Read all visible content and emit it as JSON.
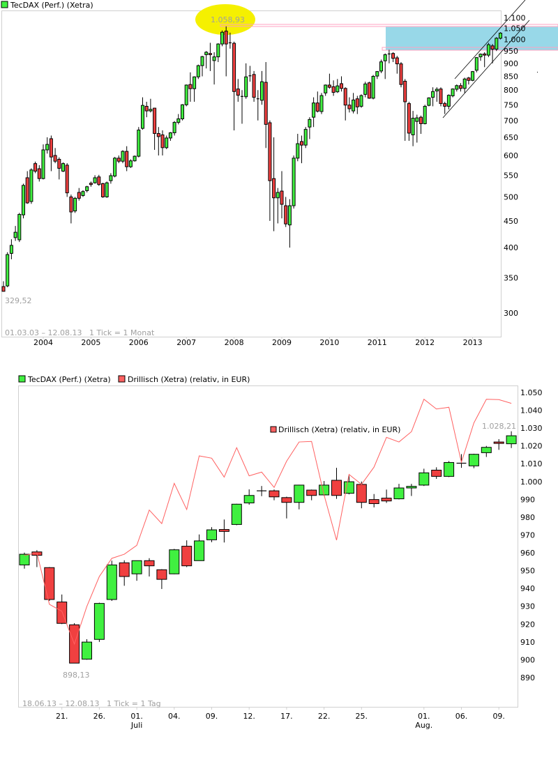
{
  "chart_data": [
    {
      "type": "candlestick",
      "legend": [
        {
          "name": "TecDAX (Perf.) (Xetra)",
          "color": "#40f040"
        }
      ],
      "scale": "log",
      "ylim": [
        280,
        1150
      ],
      "y_ticks": [
        "1.100",
        "1.050",
        "1.000",
        "950",
        "900",
        "850",
        "800",
        "750",
        "700",
        "650",
        "600",
        "550",
        "500",
        "450",
        "400",
        "350",
        "300"
      ],
      "y_tick_values": [
        1100,
        1050,
        1000,
        950,
        900,
        850,
        800,
        750,
        700,
        650,
        600,
        550,
        500,
        450,
        400,
        350,
        300
      ],
      "x_ticks": [
        "2004",
        "2005",
        "2006",
        "2007",
        "2008",
        "2009",
        "2010",
        "2011",
        "2012",
        "2013"
      ],
      "period_label": "01.03.03 – 12.08.13   1 Tick = 1 Monat",
      "min_label": "329,52",
      "max_label": "1.058,93",
      "start_month": "2003-03",
      "ohlc_fields": [
        "open",
        "high",
        "low",
        "close"
      ],
      "ohlc": [
        [
          337,
          345,
          329.52,
          330
        ],
        [
          338,
          392,
          336,
          388
        ],
        [
          390,
          415,
          380,
          404
        ],
        [
          418,
          440,
          412,
          428
        ],
        [
          414,
          466,
          410,
          463
        ],
        [
          462,
          530,
          455,
          526
        ],
        [
          544,
          560,
          485,
          487
        ],
        [
          490,
          567,
          485,
          563
        ],
        [
          579,
          584,
          555,
          560
        ],
        [
          566,
          575,
          535,
          542
        ],
        [
          542,
          630,
          540,
          615
        ],
        [
          615,
          650,
          605,
          630
        ],
        [
          646,
          655,
          560,
          596
        ],
        [
          600,
          620,
          580,
          585
        ],
        [
          590,
          595,
          540,
          567
        ],
        [
          560,
          582,
          558,
          579
        ],
        [
          575,
          580,
          500,
          509
        ],
        [
          500,
          505,
          445,
          468
        ],
        [
          470,
          500,
          466,
          497
        ],
        [
          510,
          520,
          492,
          497
        ],
        [
          503,
          515,
          500,
          512
        ],
        [
          514,
          525,
          510,
          523
        ],
        [
          531,
          535,
          523,
          528
        ],
        [
          532,
          550,
          530,
          544
        ],
        [
          546,
          551,
          525,
          528
        ],
        [
          530,
          532,
          498,
          500
        ],
        [
          500,
          535,
          498,
          532
        ],
        [
          537,
          555,
          530,
          549
        ],
        [
          548,
          596,
          545,
          593
        ],
        [
          593,
          600,
          580,
          585
        ],
        [
          585,
          614,
          580,
          611
        ],
        [
          611,
          625,
          560,
          571
        ],
        [
          571,
          590,
          568,
          586
        ],
        [
          586,
          600,
          584,
          598
        ],
        [
          598,
          680,
          595,
          671
        ],
        [
          676,
          775,
          672,
          748
        ],
        [
          745,
          760,
          710,
          730
        ],
        [
          730,
          770,
          725,
          735
        ],
        [
          739,
          740,
          615,
          661
        ],
        [
          661,
          680,
          600,
          652
        ],
        [
          657,
          670,
          600,
          621
        ],
        [
          621,
          655,
          617,
          648
        ],
        [
          648,
          665,
          640,
          663
        ],
        [
          663,
          698,
          655,
          694
        ],
        [
          694,
          720,
          688,
          705
        ],
        [
          705,
          752,
          700,
          750
        ],
        [
          750,
          820,
          745,
          818
        ],
        [
          820,
          865,
          760,
          805
        ],
        [
          805,
          850,
          760,
          848
        ],
        [
          848,
          895,
          840,
          891
        ],
        [
          891,
          930,
          850,
          927
        ],
        [
          935,
          950,
          880,
          945
        ],
        [
          940,
          985,
          870,
          935
        ],
        [
          911,
          945,
          820,
          926
        ],
        [
          926,
          983,
          905,
          980
        ],
        [
          980,
          1040,
          970,
          1032
        ],
        [
          1037,
          1058.93,
          850,
          980
        ],
        [
          983,
          1030,
          960,
          985
        ],
        [
          983,
          990,
          670,
          795
        ],
        [
          804,
          840,
          760,
          782
        ],
        [
          778,
          800,
          690,
          778
        ],
        [
          777,
          900,
          770,
          848
        ],
        [
          852,
          890,
          830,
          852
        ],
        [
          857,
          870,
          760,
          775
        ],
        [
          770,
          800,
          700,
          770
        ],
        [
          765,
          870,
          750,
          830
        ],
        [
          828,
          905,
          620,
          688
        ],
        [
          693,
          700,
          450,
          537
        ],
        [
          542,
          650,
          430,
          498
        ],
        [
          498,
          520,
          445,
          510
        ],
        [
          513,
          560,
          455,
          484
        ],
        [
          481,
          500,
          438,
          444
        ],
        [
          442,
          495,
          400,
          481
        ],
        [
          481,
          600,
          475,
          593
        ],
        [
          593,
          660,
          585,
          632
        ],
        [
          638,
          655,
          580,
          628
        ],
        [
          628,
          680,
          620,
          673
        ],
        [
          680,
          710,
          645,
          703
        ],
        [
          710,
          775,
          680,
          756
        ],
        [
          756,
          795,
          725,
          729
        ],
        [
          728,
          790,
          720,
          781
        ],
        [
          790,
          820,
          780,
          818
        ],
        [
          818,
          860,
          805,
          810
        ],
        [
          812,
          835,
          780,
          792
        ],
        [
          794,
          840,
          790,
          815
        ],
        [
          823,
          850,
          795,
          806
        ],
        [
          806,
          810,
          700,
          749
        ],
        [
          749,
          775,
          725,
          737
        ],
        [
          730,
          790,
          722,
          766
        ],
        [
          770,
          780,
          720,
          743
        ],
        [
          745,
          785,
          740,
          781
        ],
        [
          785,
          830,
          775,
          822
        ],
        [
          826,
          830,
          770,
          772
        ],
        [
          772,
          855,
          768,
          850
        ],
        [
          851,
          870,
          840,
          868
        ],
        [
          870,
          915,
          862,
          906
        ],
        [
          910,
          940,
          840,
          935
        ],
        [
          938,
          955,
          900,
          938
        ],
        [
          940,
          945,
          905,
          920
        ],
        [
          922,
          930,
          860,
          898
        ],
        [
          898,
          905,
          810,
          820
        ],
        [
          832,
          840,
          640,
          760
        ],
        [
          754,
          760,
          640,
          662
        ],
        [
          657,
          730,
          625,
          707
        ],
        [
          697,
          718,
          635,
          708
        ],
        [
          710,
          715,
          660,
          690
        ],
        [
          690,
          750,
          688,
          745
        ],
        [
          748,
          775,
          745,
          773
        ],
        [
          775,
          810,
          745,
          795
        ],
        [
          797,
          810,
          760,
          803
        ],
        [
          804,
          810,
          745,
          754
        ],
        [
          754,
          760,
          720,
          745
        ],
        [
          745,
          785,
          735,
          782
        ],
        [
          780,
          806,
          775,
          804
        ],
        [
          803,
          820,
          795,
          816
        ],
        [
          816,
          825,
          795,
          806
        ],
        [
          806,
          845,
          790,
          840
        ],
        [
          844,
          848,
          820,
          835
        ],
        [
          835,
          870,
          832,
          868
        ],
        [
          873,
          925,
          865,
          923
        ],
        [
          926,
          940,
          910,
          937
        ],
        [
          938,
          945,
          885,
          933
        ],
        [
          933,
          985,
          925,
          977
        ],
        [
          972,
          980,
          900,
          958
        ],
        [
          958,
          1010,
          950,
          1005
        ],
        [
          1005,
          1032,
          1000,
          1028
        ]
      ],
      "highlight_zone": [
        955,
        1050
      ],
      "colors": {
        "up": "#40f040",
        "down": "#f04040",
        "zone": "#98d8e8",
        "marker": "#f5f000",
        "level_line": "#ffa0c0"
      }
    },
    {
      "type": "candlestick",
      "legend": [
        {
          "name": "TecDAX (Perf.) (Xetra)",
          "color": "#40f040"
        },
        {
          "name": "Drillisch (Xetra) (relativ, in EUR)",
          "color": "#ff6060"
        }
      ],
      "inner_legend": "Drillisch (Xetra) (relativ, in EUR)",
      "scale": "linear",
      "ylim": [
        880,
        1055
      ],
      "y_ticks": [
        "1.050",
        "1.040",
        "1.030",
        "1.020",
        "1.010",
        "1.000",
        "990",
        "980",
        "970",
        "960",
        "950",
        "940",
        "930",
        "920",
        "910",
        "900",
        "890"
      ],
      "y_tick_values": [
        1050,
        1040,
        1030,
        1020,
        1010,
        1000,
        990,
        980,
        970,
        960,
        950,
        940,
        930,
        920,
        910,
        900,
        890
      ],
      "x_ticks": [
        {
          "label": "21.",
          "day": 3
        },
        {
          "label": "26.",
          "day": 6
        },
        {
          "label": "01.",
          "day": 9,
          "month": "Juli"
        },
        {
          "label": "04.",
          "day": 12
        },
        {
          "label": "09.",
          "day": 15
        },
        {
          "label": "12.",
          "day": 18
        },
        {
          "label": "17.",
          "day": 21
        },
        {
          "label": "22.",
          "day": 24
        },
        {
          "label": "25.",
          "day": 27
        },
        {
          "label": "01.",
          "day": 32,
          "month": "Aug."
        },
        {
          "label": "06.",
          "day": 35
        },
        {
          "label": "09.",
          "day": 38
        }
      ],
      "period_label": "18.06.13 – 12.08.13   1 Tick = 1 Tag",
      "min_label": "898,13",
      "max_label": "1.028,21",
      "ohlc_fields": [
        "open",
        "high",
        "low",
        "close"
      ],
      "ohlc": [
        [
          953.2,
          960.1,
          951.1,
          959.2
        ],
        [
          960.5,
          961.5,
          952,
          958.6
        ],
        [
          951.7,
          952,
          933,
          933.8
        ],
        [
          932.4,
          936.6,
          920,
          920.4
        ],
        [
          919.6,
          920.5,
          898.13,
          898.1
        ],
        [
          900.3,
          911.5,
          900,
          909.9
        ],
        [
          911.4,
          932,
          910,
          931.6
        ],
        [
          933.8,
          955.6,
          933,
          953.2
        ],
        [
          954.4,
          955.8,
          941.5,
          946.7
        ],
        [
          948.2,
          955.6,
          944.3,
          955.6
        ],
        [
          955.6,
          957,
          946.7,
          952.7
        ],
        [
          950.5,
          950.8,
          939.7,
          945.1
        ],
        [
          948.2,
          962.2,
          948,
          961.7
        ],
        [
          963.7,
          967,
          952,
          952.7
        ],
        [
          955.6,
          970.3,
          955.5,
          966.7
        ],
        [
          967.3,
          974.4,
          966,
          972.9
        ],
        [
          973.1,
          978.7,
          965.8,
          972.0
        ],
        [
          975.9,
          987.5,
          975.5,
          987.3
        ],
        [
          988,
          995.6,
          987,
          992.2
        ],
        [
          994.8,
          997.5,
          991.8,
          994.8
        ],
        [
          994.8,
          995.5,
          989.5,
          991.4
        ],
        [
          991,
          991.5,
          979.3,
          988.3
        ],
        [
          988.3,
          998.2,
          984.4,
          998
        ],
        [
          995.2,
          995.5,
          989.5,
          992.2
        ],
        [
          992.5,
          1000.3,
          992,
          998
        ],
        [
          1000.7,
          1007.7,
          990.3,
          992.2
        ],
        [
          993.4,
          1003.4,
          992.8,
          999.9
        ],
        [
          998.4,
          1000,
          985,
          988.3
        ],
        [
          989.9,
          993,
          985.5,
          987.6
        ],
        [
          990.7,
          995.5,
          988,
          989.1
        ],
        [
          990.3,
          998.7,
          990,
          996.4
        ],
        [
          996.4,
          998.7,
          991.9,
          997.3
        ],
        [
          998,
          1007.2,
          997.5,
          1004.9
        ],
        [
          1006.4,
          1008,
          1001.5,
          1002.9
        ],
        [
          1002.9,
          1011.5,
          1002.5,
          1010.7
        ],
        [
          1010.3,
          1015.4,
          1007.7,
          1010.3
        ],
        [
          1008.8,
          1015.6,
          1007.5,
          1015.3
        ],
        [
          1016.2,
          1020,
          1013.8,
          1019.2
        ],
        [
          1022.2,
          1023.8,
          1017.8,
          1021.4
        ],
        [
          1021.2,
          1028.21,
          1018.8,
          1025.7
        ]
      ],
      "relative_line": [
        958.5,
        960.0,
        931.1,
        927.2,
        908.8,
        929.9,
        946.7,
        956.9,
        959.2,
        964.2,
        984.0,
        976.4,
        999.0,
        984.3,
        1014.4,
        1013.1,
        1002.5,
        1019.0,
        1003.2,
        1005.3,
        996.7,
        1011.4,
        1022.2,
        1022.5,
        992.5,
        967.1,
        1004.0,
        998.4,
        1008.1,
        1024.8,
        1022.2,
        1028.0,
        1046.2,
        1040.7,
        1041.7,
        1010.8,
        1032.9,
        1046.2,
        1046.0,
        1043.9
      ],
      "colors": {
        "up": "#40f040",
        "down": "#f04040",
        "line": "#ff6060"
      }
    }
  ]
}
